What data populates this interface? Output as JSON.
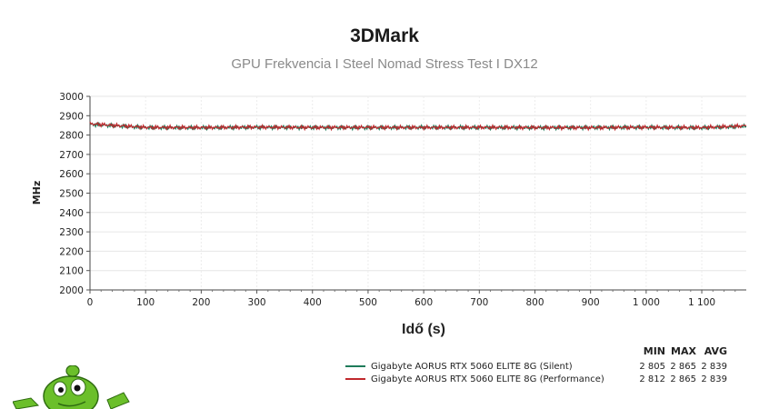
{
  "chart_data": {
    "type": "line",
    "title": "3DMark",
    "subtitle": "GPU Frekvencia I Steel Nomad Stress Test I DX12",
    "xlabel": "Idő (s)",
    "ylabel": "MHz",
    "xlim": [
      0,
      1180
    ],
    "ylim": [
      2000,
      3000
    ],
    "x_ticks": [
      0,
      100,
      200,
      300,
      400,
      500,
      600,
      700,
      800,
      900,
      1000,
      1100
    ],
    "x_tick_labels": [
      "0",
      "100",
      "200",
      "300",
      "400",
      "500",
      "600",
      "700",
      "800",
      "900",
      "1 000",
      "1 100"
    ],
    "y_ticks": [
      2000,
      2100,
      2200,
      2300,
      2400,
      2500,
      2600,
      2700,
      2800,
      2900,
      3000
    ],
    "grid": true,
    "legend_position": "bottom-right",
    "stat_headers": [
      "MIN",
      "MAX",
      "AVG"
    ],
    "series": [
      {
        "name": "Gigabyte AORUS RTX 5060 ELITE 8G (Silent)",
        "color": "#1e7b5a",
        "min": "2 805",
        "max": "2 865",
        "avg": "2 839",
        "x": [
          0,
          100,
          200,
          300,
          400,
          500,
          600,
          700,
          800,
          900,
          1000,
          1100,
          1180
        ],
        "values": [
          2855,
          2839,
          2838,
          2840,
          2839,
          2838,
          2840,
          2839,
          2838,
          2839,
          2840,
          2838,
          2845
        ]
      },
      {
        "name": "Gigabyte AORUS RTX 5060 ELITE 8G (Performance)",
        "color": "#c0282d",
        "min": "2 812",
        "max": "2 865",
        "avg": "2 839",
        "x": [
          0,
          100,
          200,
          300,
          400,
          500,
          600,
          700,
          800,
          900,
          1000,
          1100,
          1180
        ],
        "values": [
          2858,
          2840,
          2839,
          2841,
          2839,
          2840,
          2839,
          2840,
          2839,
          2838,
          2840,
          2839,
          2848
        ]
      }
    ]
  }
}
